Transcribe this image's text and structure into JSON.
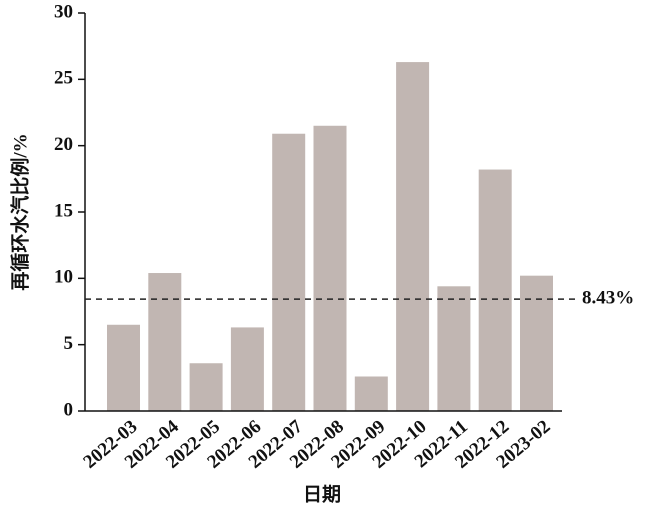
{
  "chart_data": {
    "type": "bar",
    "x_label": "日期",
    "y_label": "再循环水汽比例/%",
    "categories": [
      "2022-03",
      "2022-04",
      "2022-05",
      "2022-06",
      "2022-07",
      "2022-08",
      "2022-09",
      "2022-10",
      "2022-11",
      "2022-12",
      "2023-02"
    ],
    "values": [
      6.5,
      10.4,
      3.6,
      6.3,
      20.9,
      21.5,
      2.6,
      26.3,
      9.4,
      18.2,
      10.2
    ],
    "color": "#c1b6b2",
    "ylim": [
      0,
      30
    ],
    "yticks": [
      0,
      5,
      10,
      15,
      20,
      25,
      30
    ],
    "reference_line": {
      "value": 8.43,
      "label": "8.43%"
    }
  }
}
